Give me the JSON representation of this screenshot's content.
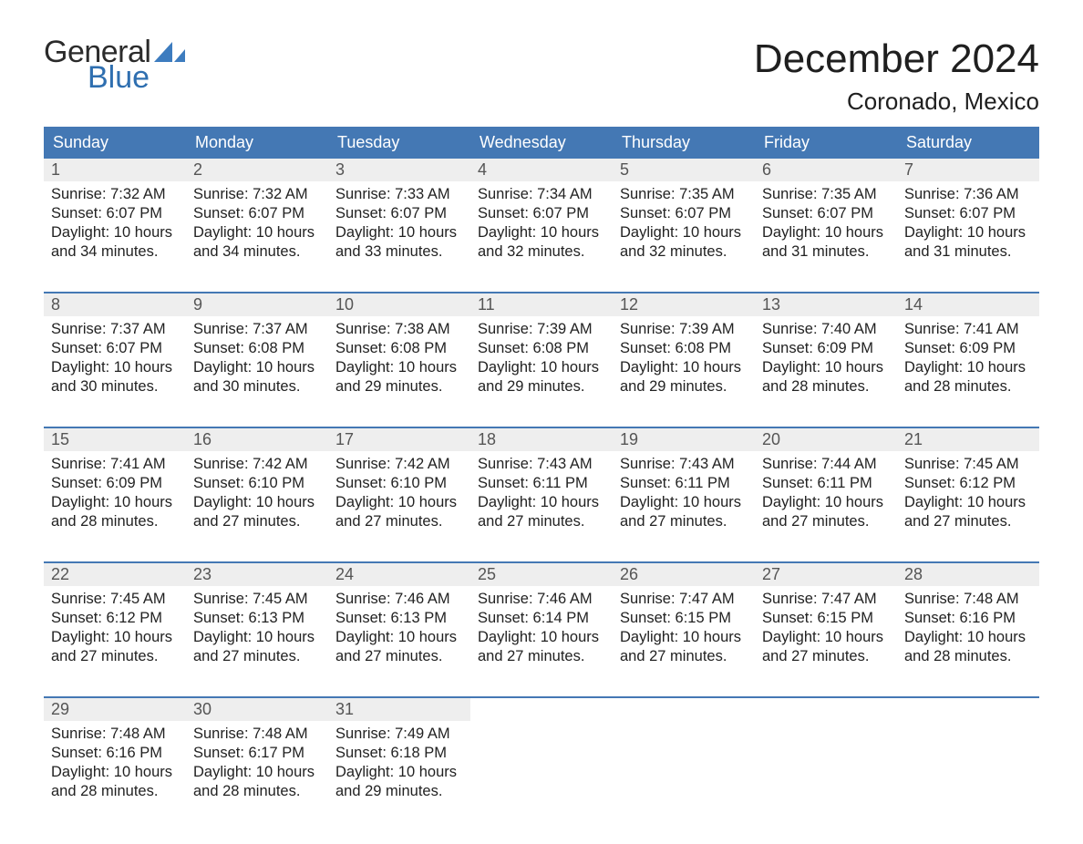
{
  "brand": {
    "text1": "General",
    "text2": "Blue"
  },
  "title": "December 2024",
  "location": "Coronado, Mexico",
  "colors": {
    "header_bg": "#4478b4",
    "header_text": "#ffffff",
    "daynum_bg": "#eeeeee",
    "week_border": "#4478b4",
    "body_text": "#222222",
    "brand_gray": "#2b2b2b",
    "brand_blue": "#2f6fb0",
    "background": "#ffffff"
  },
  "layout": {
    "columns": 7,
    "rows": 5,
    "header_fontsize": 18,
    "title_fontsize": 44,
    "location_fontsize": 26,
    "cell_fontsize": 16.5
  },
  "weekdays": [
    "Sunday",
    "Monday",
    "Tuesday",
    "Wednesday",
    "Thursday",
    "Friday",
    "Saturday"
  ],
  "weeks": [
    [
      {
        "n": "1",
        "sunrise": "7:32 AM",
        "sunset": "6:07 PM",
        "dl": "10 hours and 34 minutes."
      },
      {
        "n": "2",
        "sunrise": "7:32 AM",
        "sunset": "6:07 PM",
        "dl": "10 hours and 34 minutes."
      },
      {
        "n": "3",
        "sunrise": "7:33 AM",
        "sunset": "6:07 PM",
        "dl": "10 hours and 33 minutes."
      },
      {
        "n": "4",
        "sunrise": "7:34 AM",
        "sunset": "6:07 PM",
        "dl": "10 hours and 32 minutes."
      },
      {
        "n": "5",
        "sunrise": "7:35 AM",
        "sunset": "6:07 PM",
        "dl": "10 hours and 32 minutes."
      },
      {
        "n": "6",
        "sunrise": "7:35 AM",
        "sunset": "6:07 PM",
        "dl": "10 hours and 31 minutes."
      },
      {
        "n": "7",
        "sunrise": "7:36 AM",
        "sunset": "6:07 PM",
        "dl": "10 hours and 31 minutes."
      }
    ],
    [
      {
        "n": "8",
        "sunrise": "7:37 AM",
        "sunset": "6:07 PM",
        "dl": "10 hours and 30 minutes."
      },
      {
        "n": "9",
        "sunrise": "7:37 AM",
        "sunset": "6:08 PM",
        "dl": "10 hours and 30 minutes."
      },
      {
        "n": "10",
        "sunrise": "7:38 AM",
        "sunset": "6:08 PM",
        "dl": "10 hours and 29 minutes."
      },
      {
        "n": "11",
        "sunrise": "7:39 AM",
        "sunset": "6:08 PM",
        "dl": "10 hours and 29 minutes."
      },
      {
        "n": "12",
        "sunrise": "7:39 AM",
        "sunset": "6:08 PM",
        "dl": "10 hours and 29 minutes."
      },
      {
        "n": "13",
        "sunrise": "7:40 AM",
        "sunset": "6:09 PM",
        "dl": "10 hours and 28 minutes."
      },
      {
        "n": "14",
        "sunrise": "7:41 AM",
        "sunset": "6:09 PM",
        "dl": "10 hours and 28 minutes."
      }
    ],
    [
      {
        "n": "15",
        "sunrise": "7:41 AM",
        "sunset": "6:09 PM",
        "dl": "10 hours and 28 minutes."
      },
      {
        "n": "16",
        "sunrise": "7:42 AM",
        "sunset": "6:10 PM",
        "dl": "10 hours and 27 minutes."
      },
      {
        "n": "17",
        "sunrise": "7:42 AM",
        "sunset": "6:10 PM",
        "dl": "10 hours and 27 minutes."
      },
      {
        "n": "18",
        "sunrise": "7:43 AM",
        "sunset": "6:11 PM",
        "dl": "10 hours and 27 minutes."
      },
      {
        "n": "19",
        "sunrise": "7:43 AM",
        "sunset": "6:11 PM",
        "dl": "10 hours and 27 minutes."
      },
      {
        "n": "20",
        "sunrise": "7:44 AM",
        "sunset": "6:11 PM",
        "dl": "10 hours and 27 minutes."
      },
      {
        "n": "21",
        "sunrise": "7:45 AM",
        "sunset": "6:12 PM",
        "dl": "10 hours and 27 minutes."
      }
    ],
    [
      {
        "n": "22",
        "sunrise": "7:45 AM",
        "sunset": "6:12 PM",
        "dl": "10 hours and 27 minutes."
      },
      {
        "n": "23",
        "sunrise": "7:45 AM",
        "sunset": "6:13 PM",
        "dl": "10 hours and 27 minutes."
      },
      {
        "n": "24",
        "sunrise": "7:46 AM",
        "sunset": "6:13 PM",
        "dl": "10 hours and 27 minutes."
      },
      {
        "n": "25",
        "sunrise": "7:46 AM",
        "sunset": "6:14 PM",
        "dl": "10 hours and 27 minutes."
      },
      {
        "n": "26",
        "sunrise": "7:47 AM",
        "sunset": "6:15 PM",
        "dl": "10 hours and 27 minutes."
      },
      {
        "n": "27",
        "sunrise": "7:47 AM",
        "sunset": "6:15 PM",
        "dl": "10 hours and 27 minutes."
      },
      {
        "n": "28",
        "sunrise": "7:48 AM",
        "sunset": "6:16 PM",
        "dl": "10 hours and 28 minutes."
      }
    ],
    [
      {
        "n": "29",
        "sunrise": "7:48 AM",
        "sunset": "6:16 PM",
        "dl": "10 hours and 28 minutes."
      },
      {
        "n": "30",
        "sunrise": "7:48 AM",
        "sunset": "6:17 PM",
        "dl": "10 hours and 28 minutes."
      },
      {
        "n": "31",
        "sunrise": "7:49 AM",
        "sunset": "6:18 PM",
        "dl": "10 hours and 29 minutes."
      },
      null,
      null,
      null,
      null
    ]
  ],
  "labels": {
    "sunrise": "Sunrise: ",
    "sunset": "Sunset: ",
    "daylight": "Daylight: "
  }
}
